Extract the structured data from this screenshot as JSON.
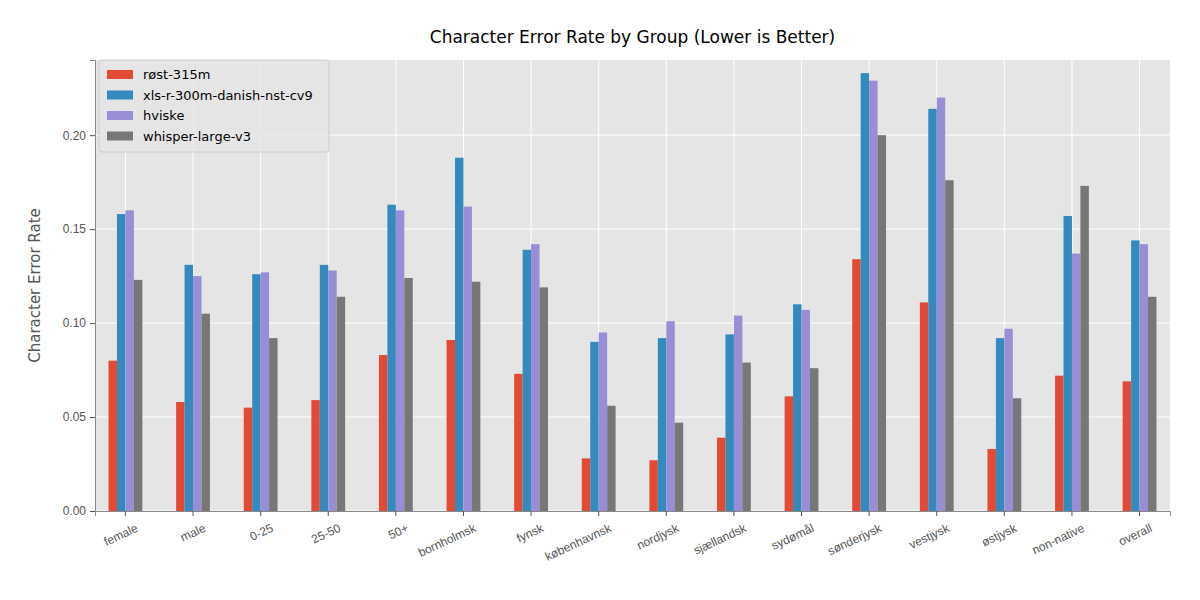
{
  "chart_data": {
    "type": "bar",
    "title": "Character Error Rate by Group (Lower is Better)",
    "y_label": "Character Error Rate",
    "categories": [
      "female",
      "male",
      "0-25",
      "25-50",
      "50+",
      "bornholmsk",
      "fynsk",
      "københavnsk",
      "nordjysk",
      "sjællandsk",
      "sydømål",
      "sønderjysk",
      "vestjysk",
      "østjysk",
      "non-native",
      "overall"
    ],
    "series": [
      {
        "name": "røst-315m",
        "color": "#E24A33",
        "values": [
          0.08,
          0.058,
          0.055,
          0.059,
          0.083,
          0.091,
          0.073,
          0.028,
          0.027,
          0.039,
          0.061,
          0.134,
          0.111,
          0.033,
          0.072,
          0.069
        ]
      },
      {
        "name": "xls-r-300m-danish-nst-cv9",
        "color": "#348ABD",
        "values": [
          0.158,
          0.131,
          0.126,
          0.131,
          0.163,
          0.188,
          0.139,
          0.09,
          0.092,
          0.094,
          0.11,
          0.233,
          0.214,
          0.092,
          0.157,
          0.144
        ]
      },
      {
        "name": "hviske",
        "color": "#988ED5",
        "values": [
          0.16,
          0.125,
          0.127,
          0.128,
          0.16,
          0.162,
          0.142,
          0.095,
          0.101,
          0.104,
          0.107,
          0.229,
          0.22,
          0.097,
          0.137,
          0.142
        ]
      },
      {
        "name": "whisper-large-v3",
        "color": "#777777",
        "values": [
          0.123,
          0.105,
          0.092,
          0.114,
          0.124,
          0.122,
          0.119,
          0.056,
          0.047,
          0.079,
          0.076,
          0.2,
          0.176,
          0.06,
          0.173,
          0.114
        ]
      }
    ],
    "ylim": [
      0,
      0.24
    ],
    "yticks": [
      {
        "value": 0,
        "label": "0.00"
      },
      {
        "value": 0.05,
        "label": "0.05"
      },
      {
        "value": 0.1,
        "label": "0.10"
      },
      {
        "value": 0.15,
        "label": "0.15"
      },
      {
        "value": 0.2,
        "label": "0.20"
      }
    ],
    "grid": true,
    "legend": "upper left"
  }
}
